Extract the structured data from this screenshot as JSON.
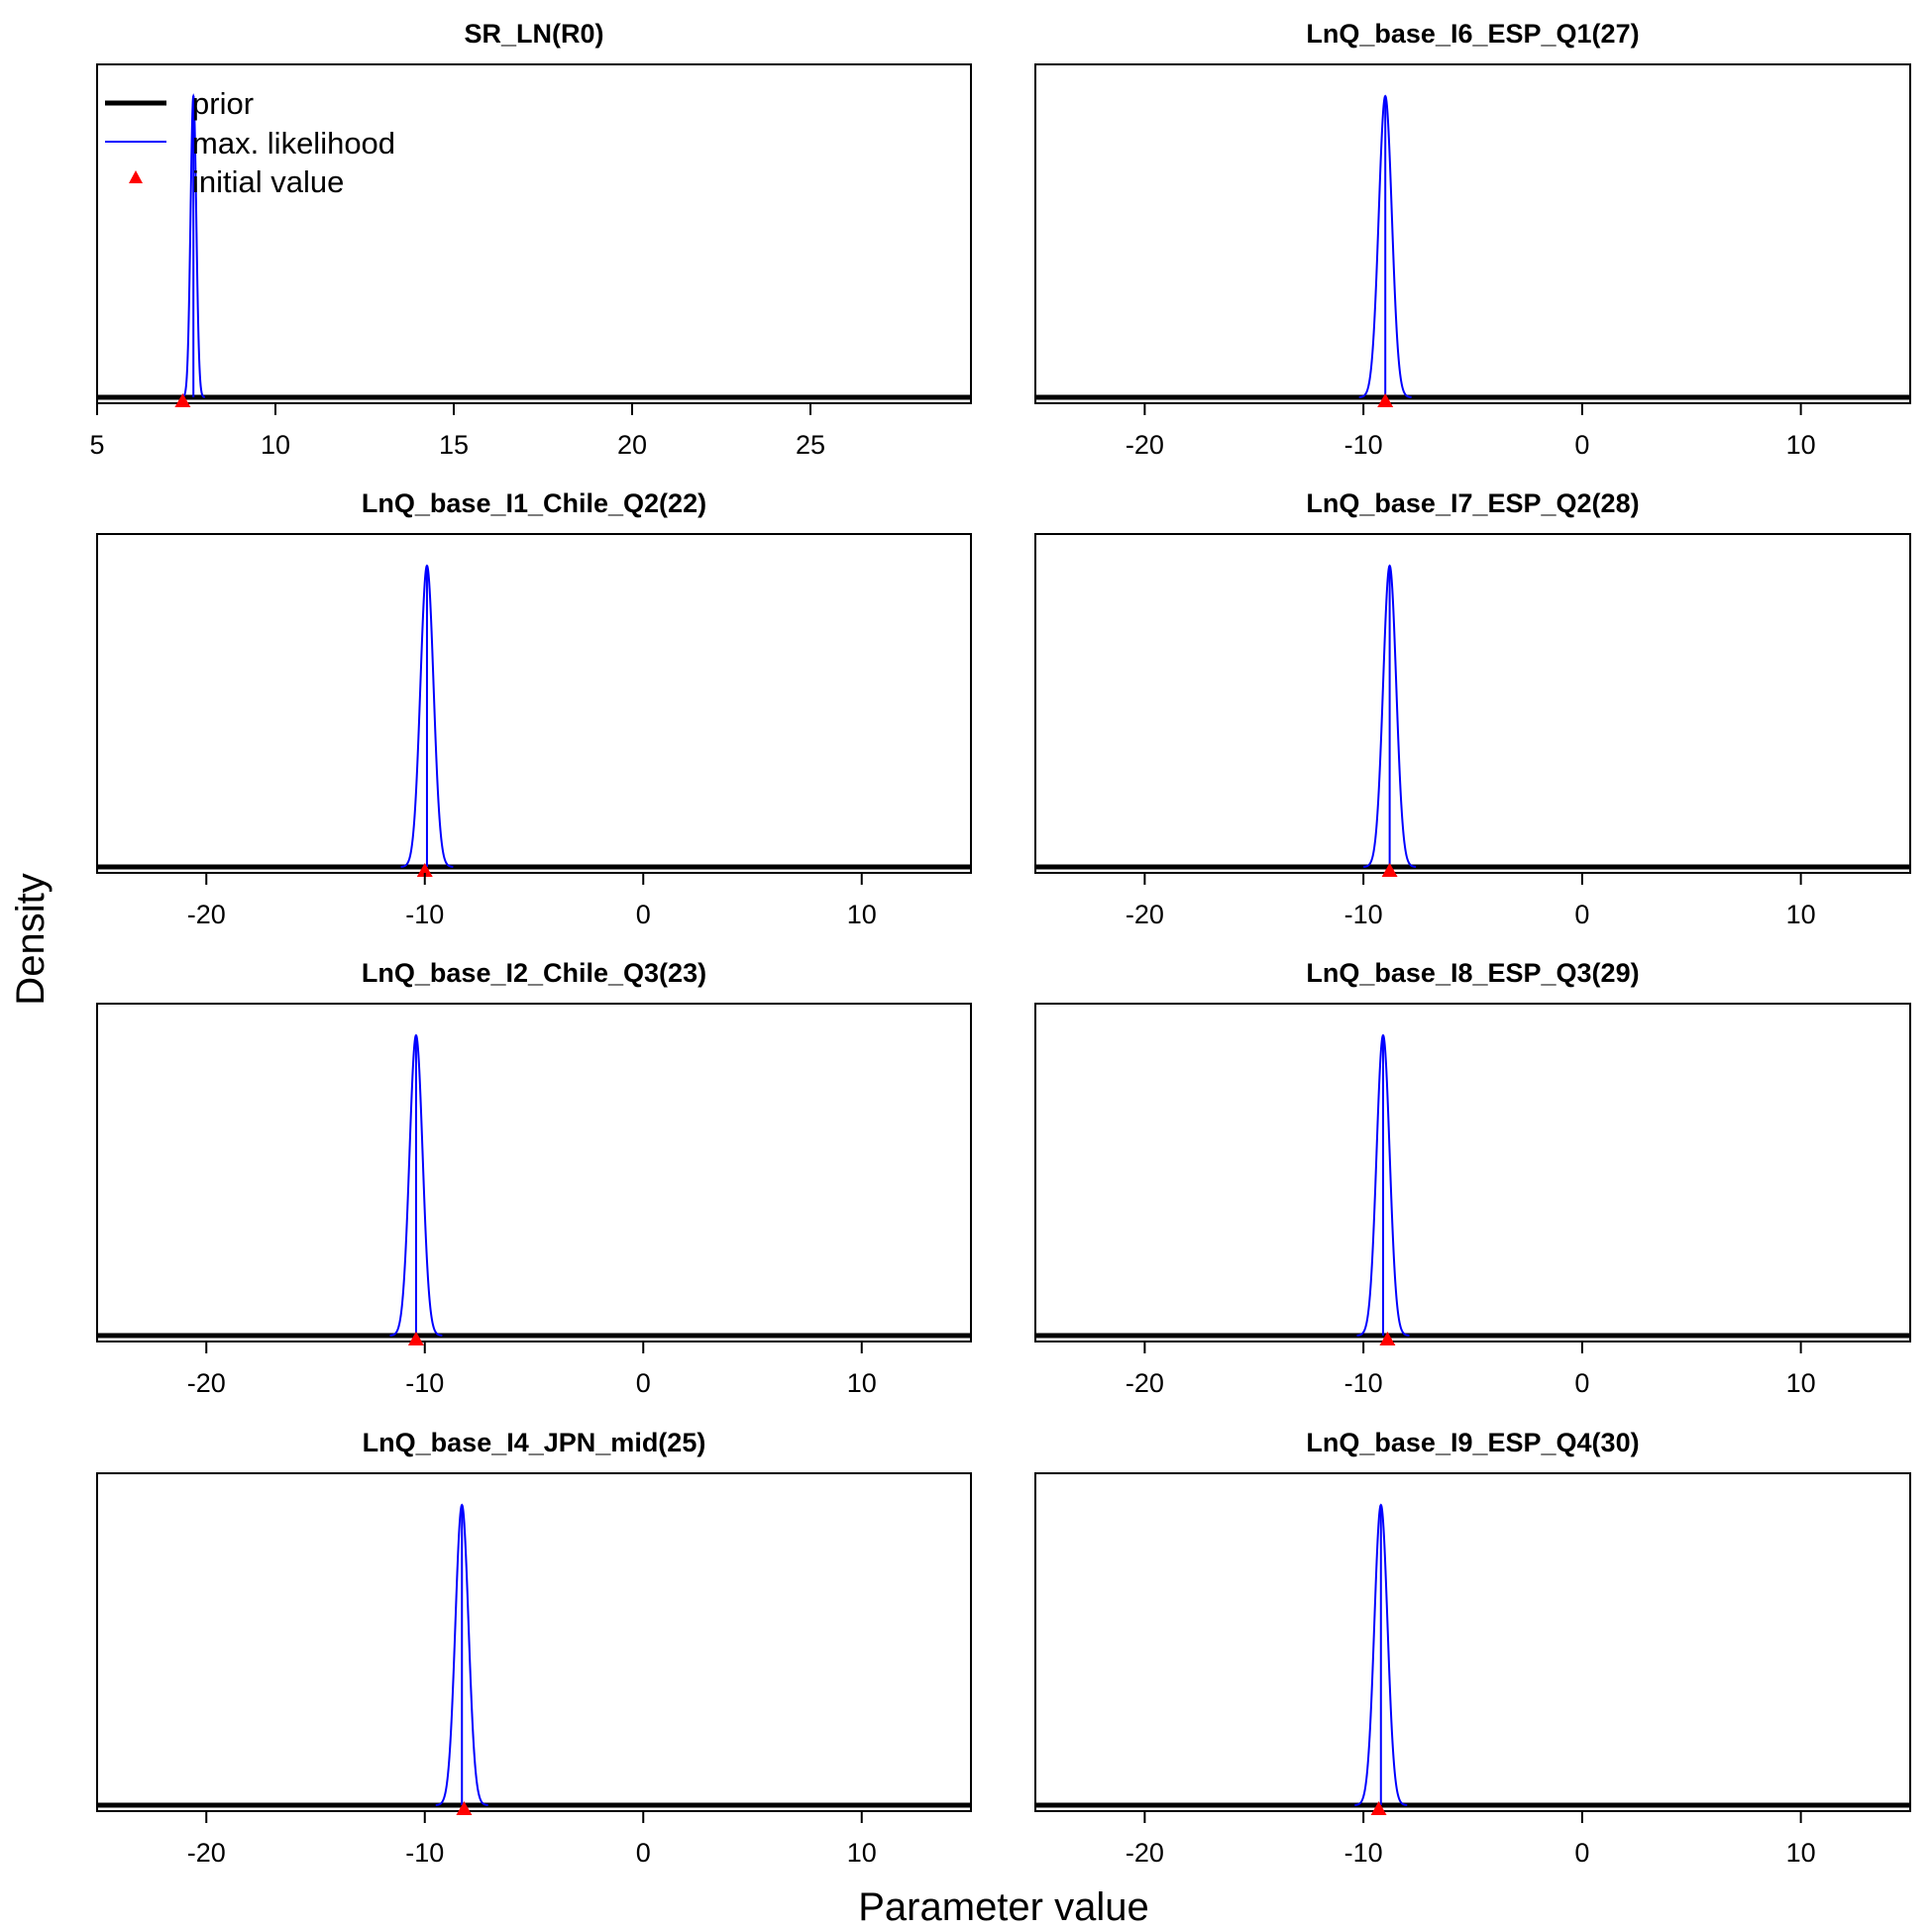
{
  "figure": {
    "xlabel": "Parameter value",
    "ylabel": "Density"
  },
  "legend": {
    "placement": "top-left of first panel",
    "entries": [
      {
        "label": "prior",
        "symbol": "thick-line",
        "color": "#000000"
      },
      {
        "label": "max. likelihood",
        "symbol": "thin-line",
        "color": "#0000ff"
      },
      {
        "label": "initial value",
        "symbol": "triangle",
        "color": "#ff0000"
      }
    ]
  },
  "colors": {
    "prior": "#000000",
    "max_likelihood": "#0000ff",
    "initial_value": "#ff0000"
  },
  "chart_data": [
    {
      "type": "line",
      "title": "SR_LN(R0)",
      "xlim": [
        5,
        29.5
      ],
      "xticks": [
        5,
        10,
        15,
        20,
        25
      ],
      "tick_labels": [
        "5",
        "10",
        "15",
        "20",
        "25"
      ],
      "mle": 7.7,
      "sd": 0.08,
      "initial_value": 7.4,
      "grid": false
    },
    {
      "type": "line",
      "title": "LnQ_base_I6_ESP_Q1(27)",
      "xlim": [
        -25,
        15
      ],
      "xticks": [
        -20,
        -10,
        0,
        10
      ],
      "tick_labels": [
        "-20",
        "-10",
        "0",
        "10"
      ],
      "mle": -9.0,
      "sd": 0.3,
      "initial_value": -9.0,
      "grid": false
    },
    {
      "type": "line",
      "title": "LnQ_base_I1_Chile_Q2(22)",
      "xlim": [
        -25,
        15
      ],
      "xticks": [
        -20,
        -10,
        0,
        10
      ],
      "tick_labels": [
        "-20",
        "-10",
        "0",
        "10"
      ],
      "mle": -9.9,
      "sd": 0.3,
      "initial_value": -10.0,
      "grid": false
    },
    {
      "type": "line",
      "title": "LnQ_base_I7_ESP_Q2(28)",
      "xlim": [
        -25,
        15
      ],
      "xticks": [
        -20,
        -10,
        0,
        10
      ],
      "tick_labels": [
        "-20",
        "-10",
        "0",
        "10"
      ],
      "mle": -8.8,
      "sd": 0.3,
      "initial_value": -8.8,
      "grid": false
    },
    {
      "type": "line",
      "title": "LnQ_base_I2_Chile_Q3(23)",
      "xlim": [
        -25,
        15
      ],
      "xticks": [
        -20,
        -10,
        0,
        10
      ],
      "tick_labels": [
        "-20",
        "-10",
        "0",
        "10"
      ],
      "mle": -10.4,
      "sd": 0.3,
      "initial_value": -10.4,
      "grid": false
    },
    {
      "type": "line",
      "title": "LnQ_base_I8_ESP_Q3(29)",
      "xlim": [
        -25,
        15
      ],
      "xticks": [
        -20,
        -10,
        0,
        10
      ],
      "tick_labels": [
        "-20",
        "-10",
        "0",
        "10"
      ],
      "mle": -9.1,
      "sd": 0.3,
      "initial_value": -8.9,
      "grid": false
    },
    {
      "type": "line",
      "title": "LnQ_base_I4_JPN_mid(25)",
      "xlim": [
        -25,
        15
      ],
      "xticks": [
        -20,
        -10,
        0,
        10
      ],
      "tick_labels": [
        "-20",
        "-10",
        "0",
        "10"
      ],
      "mle": -8.3,
      "sd": 0.3,
      "initial_value": -8.2,
      "grid": false
    },
    {
      "type": "line",
      "title": "LnQ_base_I9_ESP_Q4(30)",
      "xlim": [
        -25,
        15
      ],
      "xticks": [
        -20,
        -10,
        0,
        10
      ],
      "tick_labels": [
        "-20",
        "-10",
        "0",
        "10"
      ],
      "mle": -9.2,
      "sd": 0.3,
      "initial_value": -9.3,
      "grid": false
    }
  ]
}
